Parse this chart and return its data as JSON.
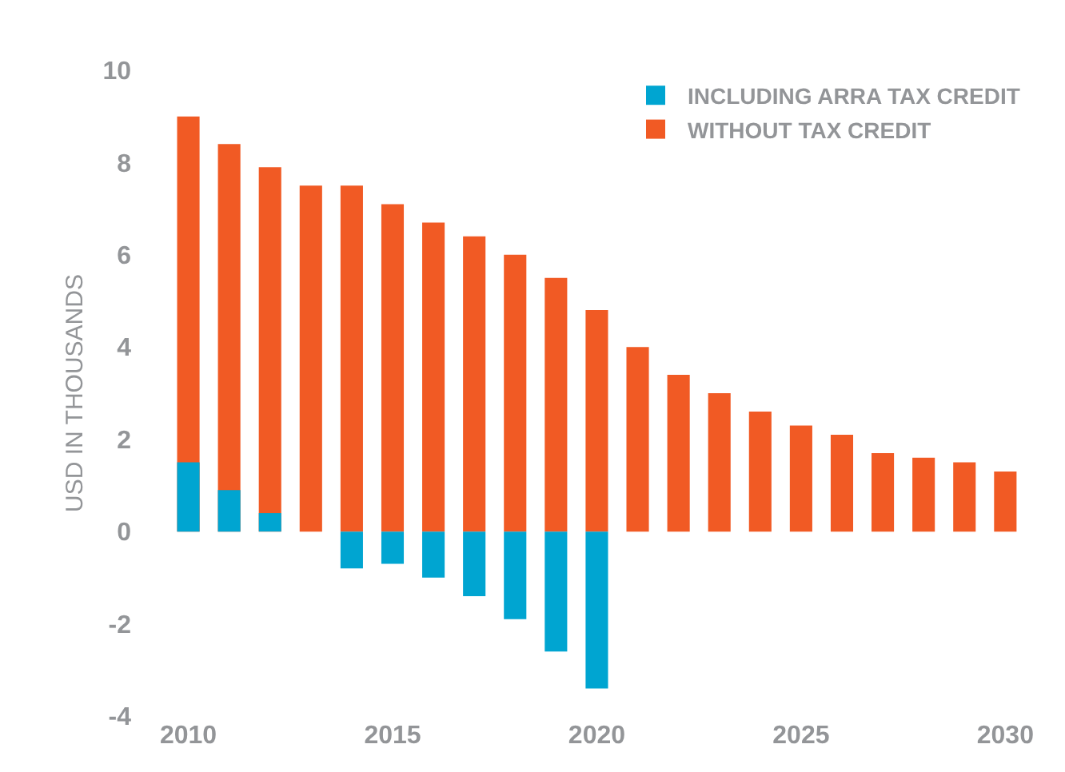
{
  "chart_data": {
    "type": "bar",
    "ylabel": "USD IN THOUSANDS",
    "categories": [
      "2010",
      null,
      null,
      null,
      null,
      "2015",
      null,
      null,
      null,
      null,
      "2020",
      null,
      null,
      null,
      null,
      "2025",
      null,
      null,
      null,
      null,
      "2030"
    ],
    "series": [
      {
        "name": "WITHOUT TAX CREDIT",
        "color": "#f15a24",
        "values": [
          9.0,
          8.4,
          7.9,
          7.5,
          7.5,
          7.1,
          6.7,
          6.4,
          6.0,
          5.5,
          4.8,
          4.0,
          3.4,
          3.0,
          2.6,
          2.3,
          2.1,
          1.7,
          1.6,
          1.5,
          1.3
        ]
      },
      {
        "name": "INCLUDING ARRA TAX CREDIT",
        "color": "#00a5d1",
        "values": [
          1.5,
          0.9,
          0.4,
          0,
          -0.8,
          -0.7,
          -1.0,
          -1.4,
          -1.9,
          -2.6,
          -3.4,
          0,
          0,
          0,
          0,
          0,
          0,
          0,
          0,
          0,
          0
        ]
      }
    ],
    "ylim": [
      -4,
      10
    ],
    "yticks": [
      -4,
      -2,
      0,
      2,
      4,
      6,
      8,
      10
    ],
    "legend": "top right"
  }
}
